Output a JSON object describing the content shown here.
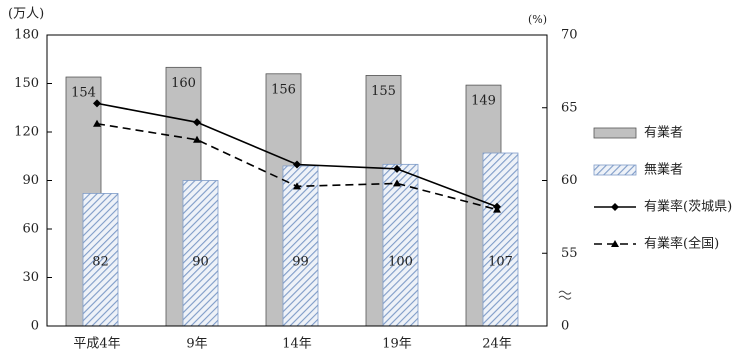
{
  "chart_data": {
    "type": "bar",
    "y_unit": "(万人)",
    "y2_unit": "(%)",
    "categories": [
      "平成4年",
      "9年",
      "14年",
      "19年",
      "24年"
    ],
    "ylim": [
      0,
      180
    ],
    "yticks": [
      0,
      30,
      60,
      90,
      120,
      150,
      180
    ],
    "y2lim": [
      50,
      70
    ],
    "y2ticks": [
      {
        "value": 50,
        "label": "0"
      },
      55,
      60,
      65,
      70
    ],
    "axis_break": "y2",
    "series": [
      {
        "name": "有業者",
        "type": "bar",
        "color": "#c0c0c0",
        "values": [
          154,
          160,
          156,
          155,
          149
        ]
      },
      {
        "name": "無業者",
        "type": "bar",
        "color": "#9db4d6",
        "pattern": "hatch",
        "values": [
          82,
          90,
          99,
          100,
          107
        ]
      },
      {
        "name": "有業率(茨城県)",
        "type": "line",
        "axis": "y2",
        "color": "#000000",
        "marker": "diamond",
        "dash": false,
        "values": [
          65.3,
          64.0,
          61.1,
          60.8,
          58.2
        ]
      },
      {
        "name": "有業率(全国)",
        "type": "line",
        "axis": "y2",
        "color": "#000000",
        "marker": "triangle",
        "dash": true,
        "values": [
          63.9,
          62.8,
          59.6,
          59.8,
          58.0
        ]
      }
    ]
  }
}
